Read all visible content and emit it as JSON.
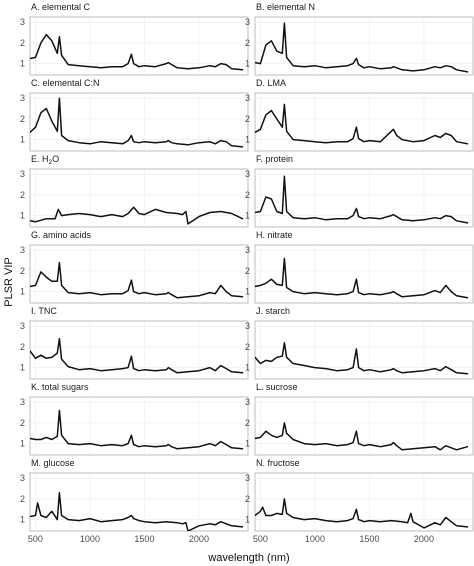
{
  "chart_data": {
    "type": "line",
    "xlabel": "wavelength (nm)",
    "ylabel": "PLSR VIP",
    "xlim": [
      450,
      2450
    ],
    "ylim": [
      0.45,
      3.25
    ],
    "x_ticks": [
      500,
      1000,
      1500,
      2000
    ],
    "y_ticks": [
      1,
      2,
      3
    ],
    "grid": true,
    "layout": "7 rows x 2 columns",
    "panels": [
      {
        "title": "A. elemental C",
        "x": [
          400,
          500,
          550,
          600,
          650,
          700,
          720,
          740,
          800,
          900,
          1000,
          1100,
          1200,
          1300,
          1350,
          1380,
          1400,
          1450,
          1500,
          1600,
          1700,
          1720,
          1750,
          1800,
          1900,
          2000,
          2100,
          2150,
          2200,
          2250,
          2300,
          2400
        ],
        "y": [
          1.2,
          1.3,
          2.0,
          2.4,
          2.1,
          1.5,
          2.3,
          1.4,
          0.95,
          0.9,
          0.85,
          0.8,
          0.85,
          0.85,
          1.0,
          1.45,
          1.0,
          0.85,
          0.9,
          0.85,
          1.0,
          1.05,
          0.95,
          0.8,
          0.75,
          0.8,
          0.9,
          0.85,
          1.0,
          0.95,
          0.75,
          0.7
        ]
      },
      {
        "title": "B. elemental N",
        "x": [
          400,
          500,
          550,
          600,
          650,
          700,
          720,
          740,
          800,
          900,
          1000,
          1100,
          1200,
          1300,
          1350,
          1380,
          1400,
          1450,
          1500,
          1600,
          1700,
          1720,
          1750,
          1800,
          1900,
          2000,
          2100,
          2150,
          2200,
          2250,
          2300,
          2400
        ],
        "y": [
          1.1,
          1.0,
          1.9,
          2.1,
          1.6,
          1.5,
          2.95,
          1.3,
          0.9,
          0.85,
          0.9,
          0.8,
          0.85,
          0.9,
          1.0,
          1.25,
          0.95,
          0.8,
          0.85,
          0.75,
          0.8,
          0.85,
          0.8,
          0.7,
          0.65,
          0.7,
          0.85,
          0.8,
          0.9,
          0.85,
          0.7,
          0.6
        ]
      },
      {
        "title": "C. elemental C:N",
        "x": [
          400,
          500,
          550,
          600,
          650,
          700,
          720,
          740,
          800,
          900,
          1000,
          1100,
          1200,
          1300,
          1350,
          1380,
          1400,
          1450,
          1500,
          1600,
          1700,
          1720,
          1750,
          1800,
          1900,
          2000,
          2100,
          2150,
          2200,
          2250,
          2300,
          2400
        ],
        "y": [
          1.1,
          1.6,
          2.3,
          2.5,
          1.9,
          1.4,
          3.0,
          1.2,
          0.95,
          0.85,
          0.8,
          0.9,
          0.85,
          0.8,
          0.95,
          1.2,
          0.9,
          0.85,
          0.9,
          0.85,
          0.9,
          0.95,
          0.85,
          0.8,
          0.75,
          0.85,
          0.9,
          0.8,
          0.95,
          0.9,
          0.7,
          0.65
        ]
      },
      {
        "title": "D. LMA",
        "x": [
          400,
          500,
          550,
          600,
          650,
          700,
          720,
          740,
          800,
          900,
          1000,
          1100,
          1200,
          1300,
          1350,
          1380,
          1400,
          1450,
          1500,
          1600,
          1700,
          1720,
          1750,
          1800,
          1900,
          2000,
          2100,
          2150,
          2200,
          2250,
          2300,
          2400
        ],
        "y": [
          1.2,
          1.5,
          2.2,
          2.4,
          2.0,
          1.6,
          2.7,
          1.4,
          1.0,
          0.95,
          0.9,
          0.85,
          0.9,
          0.9,
          1.05,
          1.6,
          1.05,
          0.9,
          0.95,
          0.9,
          1.4,
          1.5,
          1.2,
          1.0,
          0.9,
          0.95,
          1.2,
          1.1,
          1.3,
          1.2,
          0.9,
          0.8
        ]
      },
      {
        "title": "E. H2O",
        "x": [
          400,
          500,
          600,
          680,
          710,
          740,
          800,
          900,
          1000,
          1100,
          1200,
          1300,
          1350,
          1400,
          1450,
          1500,
          1600,
          1700,
          1800,
          1850,
          1880,
          1900,
          2000,
          2100,
          2200,
          2300,
          2400
        ],
        "y": [
          0.8,
          0.7,
          0.85,
          0.85,
          1.3,
          1.0,
          1.05,
          1.1,
          1.05,
          0.95,
          1.05,
          0.95,
          1.1,
          1.4,
          1.1,
          1.05,
          1.3,
          1.15,
          1.1,
          1.05,
          1.2,
          0.6,
          0.95,
          1.15,
          1.2,
          1.1,
          0.85
        ]
      },
      {
        "title": "F. protein",
        "x": [
          400,
          500,
          550,
          600,
          650,
          700,
          720,
          740,
          800,
          900,
          1000,
          1100,
          1200,
          1300,
          1350,
          1380,
          1400,
          1450,
          1500,
          1600,
          1700,
          1720,
          1750,
          1800,
          1900,
          2000,
          2100,
          2150,
          2200,
          2250,
          2300,
          2400
        ],
        "y": [
          1.1,
          1.2,
          1.9,
          1.8,
          1.2,
          1.1,
          2.9,
          1.2,
          0.9,
          0.85,
          0.9,
          0.8,
          0.85,
          0.85,
          1.0,
          1.35,
          0.95,
          0.85,
          0.9,
          0.85,
          1.0,
          1.05,
          0.95,
          0.8,
          0.75,
          0.8,
          0.9,
          0.85,
          1.0,
          0.95,
          0.75,
          0.65
        ]
      },
      {
        "title": "G. amino acids",
        "x": [
          400,
          500,
          550,
          600,
          650,
          700,
          720,
          740,
          800,
          900,
          1000,
          1100,
          1200,
          1300,
          1350,
          1380,
          1400,
          1450,
          1500,
          1600,
          1700,
          1720,
          1750,
          1800,
          1900,
          2000,
          2100,
          2150,
          2200,
          2250,
          2300,
          2400
        ],
        "y": [
          1.2,
          1.3,
          1.95,
          1.7,
          1.5,
          1.5,
          2.4,
          1.3,
          0.95,
          0.9,
          0.95,
          0.85,
          0.9,
          0.9,
          1.05,
          1.55,
          1.0,
          0.9,
          0.95,
          0.85,
          0.9,
          0.95,
          0.85,
          0.7,
          0.75,
          0.8,
          0.95,
          0.9,
          1.3,
          1.0,
          0.8,
          0.75
        ]
      },
      {
        "title": "H. nitrate",
        "x": [
          400,
          500,
          550,
          600,
          650,
          700,
          720,
          740,
          800,
          900,
          1000,
          1100,
          1200,
          1300,
          1350,
          1380,
          1400,
          1450,
          1500,
          1600,
          1700,
          1720,
          1750,
          1800,
          1900,
          2000,
          2100,
          2150,
          2200,
          2250,
          2300,
          2400
        ],
        "y": [
          1.2,
          1.3,
          1.4,
          1.6,
          1.35,
          1.3,
          2.6,
          1.2,
          1.0,
          0.9,
          0.95,
          0.9,
          0.85,
          0.9,
          1.0,
          1.6,
          0.95,
          0.85,
          0.9,
          0.85,
          0.95,
          1.0,
          0.9,
          0.75,
          0.8,
          0.85,
          1.05,
          0.95,
          1.3,
          1.0,
          0.8,
          0.7
        ]
      },
      {
        "title": "I. TNC",
        "x": [
          400,
          450,
          500,
          550,
          600,
          650,
          700,
          720,
          740,
          800,
          900,
          1000,
          1100,
          1200,
          1300,
          1350,
          1380,
          1400,
          1450,
          1500,
          1600,
          1700,
          1720,
          1750,
          1800,
          1900,
          2000,
          2100,
          2150,
          2200,
          2250,
          2300,
          2400
        ],
        "y": [
          1.6,
          1.8,
          1.45,
          1.6,
          1.45,
          1.5,
          1.7,
          2.4,
          1.4,
          1.05,
          0.9,
          0.95,
          0.85,
          0.9,
          0.95,
          1.0,
          1.55,
          0.95,
          0.85,
          0.9,
          0.85,
          0.9,
          1.0,
          0.9,
          0.75,
          0.8,
          0.85,
          1.0,
          0.85,
          1.1,
          0.95,
          0.8,
          0.75
        ]
      },
      {
        "title": "J. starch",
        "x": [
          400,
          450,
          500,
          550,
          600,
          650,
          700,
          720,
          740,
          800,
          900,
          1000,
          1100,
          1200,
          1300,
          1350,
          1380,
          1400,
          1450,
          1500,
          1600,
          1700,
          1720,
          1750,
          1800,
          1900,
          2000,
          2100,
          2150,
          2200,
          2250,
          2300,
          2400
        ],
        "y": [
          1.2,
          1.5,
          1.2,
          1.35,
          1.3,
          1.5,
          1.55,
          2.2,
          1.5,
          1.2,
          1.1,
          1.0,
          0.95,
          0.85,
          0.9,
          1.0,
          1.9,
          1.0,
          0.85,
          0.9,
          0.8,
          0.9,
          0.95,
          0.85,
          0.75,
          0.8,
          0.85,
          0.95,
          0.85,
          1.05,
          0.9,
          0.75,
          0.7
        ]
      },
      {
        "title": "K. total sugars",
        "x": [
          400,
          500,
          550,
          600,
          650,
          700,
          720,
          740,
          800,
          900,
          1000,
          1100,
          1200,
          1300,
          1350,
          1380,
          1400,
          1450,
          1500,
          1600,
          1700,
          1720,
          1750,
          1800,
          1900,
          2000,
          2100,
          2150,
          2200,
          2250,
          2300,
          2400
        ],
        "y": [
          1.3,
          1.2,
          1.2,
          1.3,
          1.2,
          1.35,
          2.6,
          1.4,
          1.0,
          0.95,
          1.0,
          0.9,
          0.95,
          0.9,
          1.0,
          1.4,
          0.95,
          0.85,
          0.9,
          0.85,
          0.9,
          0.95,
          0.85,
          0.75,
          0.8,
          0.85,
          1.0,
          0.9,
          1.1,
          0.95,
          0.8,
          0.75
        ]
      },
      {
        "title": "L. sucrose",
        "x": [
          400,
          500,
          550,
          600,
          650,
          700,
          720,
          740,
          800,
          900,
          1000,
          1100,
          1200,
          1300,
          1350,
          1380,
          1400,
          1450,
          1500,
          1600,
          1700,
          1720,
          1750,
          1800,
          1900,
          2000,
          2100,
          2150,
          2200,
          2250,
          2300,
          2400
        ],
        "y": [
          1.2,
          1.3,
          1.6,
          1.4,
          1.3,
          1.4,
          2.0,
          1.5,
          1.2,
          1.0,
          0.95,
          1.0,
          0.9,
          0.95,
          1.05,
          1.6,
          1.0,
          0.9,
          0.95,
          0.85,
          0.95,
          1.05,
          0.9,
          0.7,
          0.75,
          0.8,
          0.85,
          0.7,
          0.9,
          0.8,
          0.7,
          0.85
        ]
      },
      {
        "title": "M. glucose",
        "x": [
          400,
          500,
          520,
          550,
          600,
          650,
          700,
          720,
          740,
          800,
          900,
          1000,
          1100,
          1200,
          1300,
          1350,
          1380,
          1400,
          1450,
          1500,
          1600,
          1700,
          1800,
          1850,
          1880,
          1900,
          2000,
          2100,
          2150,
          2200,
          2250,
          2300,
          2400
        ],
        "y": [
          1.1,
          1.2,
          1.8,
          1.2,
          1.1,
          1.4,
          1.0,
          2.3,
          1.2,
          1.0,
          0.95,
          1.05,
          0.9,
          0.95,
          1.0,
          1.1,
          1.2,
          1.05,
          0.95,
          0.9,
          0.85,
          0.9,
          0.85,
          0.8,
          0.85,
          0.45,
          0.7,
          0.8,
          0.75,
          0.9,
          0.8,
          0.7,
          0.65
        ]
      },
      {
        "title": "N. fructose",
        "x": [
          400,
          500,
          520,
          550,
          600,
          650,
          700,
          720,
          740,
          800,
          900,
          1000,
          1100,
          1200,
          1300,
          1350,
          1380,
          1400,
          1450,
          1500,
          1600,
          1700,
          1800,
          1850,
          1880,
          1900,
          2000,
          2100,
          2150,
          2200,
          2250,
          2300,
          2400
        ],
        "y": [
          1.0,
          1.4,
          1.6,
          1.2,
          1.2,
          1.3,
          1.25,
          2.0,
          1.3,
          1.1,
          1.0,
          1.05,
          0.95,
          0.9,
          0.95,
          1.05,
          1.5,
          1.0,
          0.9,
          0.95,
          0.9,
          0.95,
          0.9,
          0.85,
          1.3,
          0.9,
          0.6,
          0.85,
          0.75,
          1.1,
          0.9,
          0.7,
          0.65
        ]
      }
    ]
  }
}
